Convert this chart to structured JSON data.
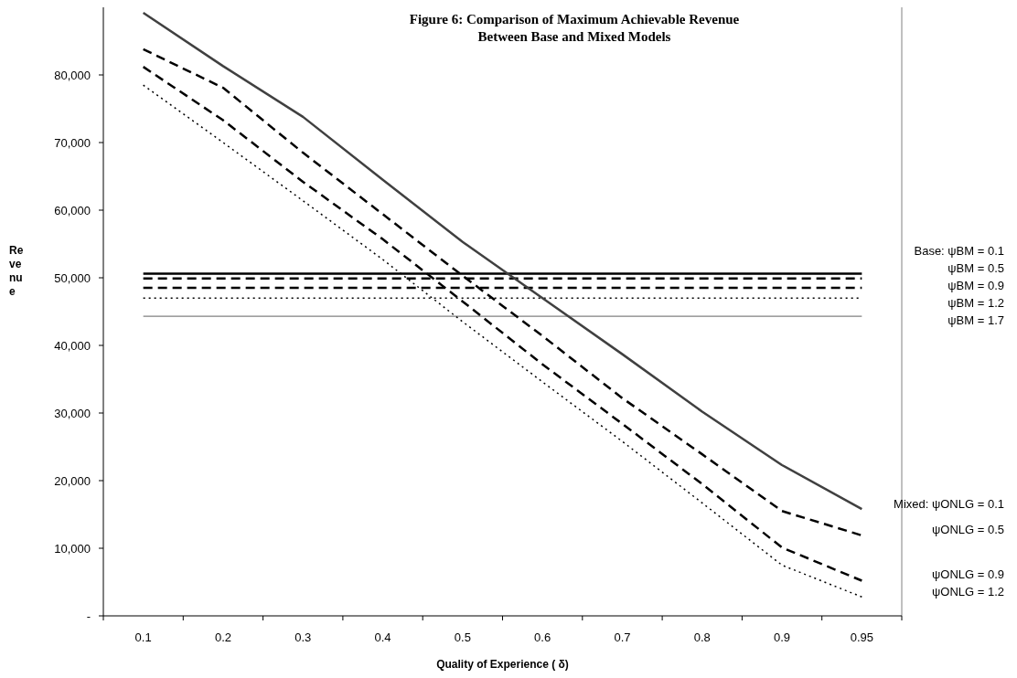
{
  "chart_data": {
    "type": "line",
    "title": "Figure 6: Comparison of Maximum Achievable Revenue",
    "subtitle": "Between Base and Mixed Models",
    "xlabel": "Quality of Experience ( δ)",
    "ylabel": "Revenue",
    "categories": [
      "0.1",
      "0.2",
      "0.3",
      "0.4",
      "0.5",
      "0.6",
      "0.7",
      "0.8",
      "0.9",
      "0.95"
    ],
    "ylim": [
      0,
      90000
    ],
    "yticks": [
      {
        "value": 0,
        "label": "-"
      },
      {
        "value": 10000,
        "label": "10,000"
      },
      {
        "value": 20000,
        "label": "20,000"
      },
      {
        "value": 30000,
        "label": "30,000"
      },
      {
        "value": 40000,
        "label": "40,000"
      },
      {
        "value": 50000,
        "label": "50,000"
      },
      {
        "value": 60000,
        "label": "60,000"
      },
      {
        "value": 70000,
        "label": "70,000"
      },
      {
        "value": 80000,
        "label": "80,000"
      }
    ],
    "grid": false,
    "marker": "none",
    "series": [
      {
        "name": "Base:  ψBM = 0.1",
        "color": "#000000",
        "line_style": "solid",
        "values": [
          50600,
          50600,
          50600,
          50600,
          50600,
          50600,
          50600,
          50600,
          50600,
          50600
        ]
      },
      {
        "name": "ψBM = 0.5",
        "color": "#000000",
        "line_style": "dashed",
        "values": [
          49900,
          49900,
          49900,
          49900,
          49900,
          49900,
          49900,
          49900,
          49900,
          49900
        ]
      },
      {
        "name": "ψBM = 0.9",
        "color": "#000000",
        "line_style": "dashed",
        "values": [
          48500,
          48500,
          48500,
          48500,
          48500,
          48500,
          48500,
          48500,
          48500,
          48500
        ]
      },
      {
        "name": "ψBM = 1.2",
        "color": "#000000",
        "line_style": "dotted",
        "values": [
          47000,
          47000,
          47000,
          47000,
          47000,
          47000,
          47000,
          47000,
          47000,
          47000
        ]
      },
      {
        "name": "ψBM = 1.7",
        "color": "#808080",
        "line_style": "solid",
        "values": [
          44300,
          44300,
          44300,
          44300,
          44300,
          44300,
          44300,
          44300,
          44300,
          44300
        ]
      },
      {
        "name": "Mixed:  ψONLG = 0.1",
        "color": "#404040",
        "line_style": "solid",
        "values": [
          89200,
          81300,
          73800,
          64500,
          55300,
          47000,
          38700,
          30200,
          22300,
          15800
        ]
      },
      {
        "name": "ψONLG = 0.5",
        "color": "#000000",
        "line_style": "dashed",
        "values": [
          83800,
          78100,
          68500,
          59400,
          50300,
          41400,
          32200,
          23900,
          15500,
          11900
        ]
      },
      {
        "name": "ψONLG = 0.9",
        "color": "#000000",
        "line_style": "dashed",
        "values": [
          81200,
          73300,
          64200,
          55700,
          46500,
          37200,
          28400,
          19500,
          10100,
          5200
        ]
      },
      {
        "name": "ψONLG = 1.2",
        "color": "#000000",
        "line_style": "dotted",
        "values": [
          78500,
          70000,
          61400,
          52700,
          43500,
          34600,
          25800,
          16700,
          7500,
          2800
        ]
      }
    ]
  }
}
